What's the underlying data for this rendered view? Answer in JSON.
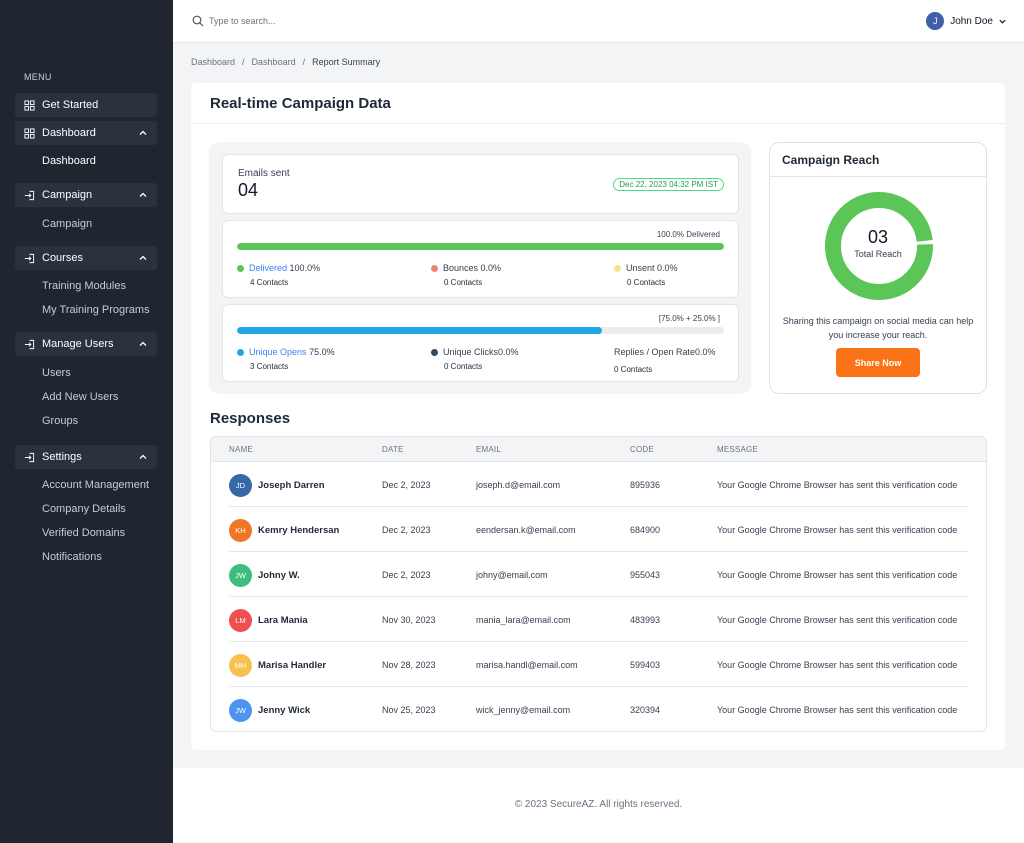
{
  "sidebar": {
    "menu_label": "MENU",
    "get_started": "Get Started",
    "dashboard": "Dashboard",
    "dashboard_sub": "Dashboard",
    "campaign": "Campaign",
    "campaign_sub": "Campaign",
    "courses": "Courses",
    "courses_sub": [
      "Training Modules",
      "My Training Programs"
    ],
    "manage_users": "Manage Users",
    "manage_users_sub": [
      "Users",
      "Add New Users",
      "Groups"
    ],
    "settings": "Settings",
    "settings_sub": [
      "Account Management",
      "Company Details",
      "Verified Domains",
      "Notifications"
    ]
  },
  "header": {
    "search_placeholder": "Type to search...",
    "user_initial": "J",
    "user_name": "John Doe"
  },
  "breadcrumb": [
    "Dashboard",
    "/",
    "Dashboard",
    "/",
    "Report Summary"
  ],
  "main": {
    "title": "Real-time Campaign Data",
    "emails_sent_label": "Emails sent",
    "emails_sent_value": "04",
    "emails_sent_date": "Dec 22, 2023 04:32 PM IST",
    "delivery": {
      "caption": "100.0% Delivered",
      "progress": 1.0,
      "color": "#5cc558",
      "delivered_label": "Delivered",
      "delivered_value": "100.0%",
      "delivered_contacts": "4 Contacts",
      "bounces": "Bounces 0.0%",
      "bounces_contacts": "0 Contacts",
      "unsent": "Unsent 0.0%",
      "unsent_contacts": "0 Contacts"
    },
    "engagement": {
      "caption": "[75.0% + 25.0% ]",
      "progress": 0.75,
      "color": "#21a7e8",
      "opens_label": "Unique Opens",
      "opens_value": "75.0%",
      "opens_contacts": "3 Contacts",
      "clicks": "Unique Clicks0.0%",
      "clicks_contacts": "0 Contacts",
      "replies": "Replies / Open Rate0.0%",
      "replies_contacts": "0 Contacts"
    },
    "reach": {
      "title": "Campaign Reach",
      "value": "03",
      "label": "Total Reach",
      "text": "Sharing this campaign on social media can help you increase your reach.",
      "button": "Share Now",
      "donut_color": "#5cc558"
    },
    "responses_title": "Responses",
    "table_headers": [
      "NAME",
      "DATE",
      "EMAIL",
      "CODE",
      "MESSAGE"
    ],
    "rows": [
      {
        "initials": "JD",
        "color": "#3667a8",
        "name": "Joseph Darren",
        "date": "Dec 2, 2023",
        "email": "joseph.d@email.com",
        "code": "895936",
        "message": "Your Google Chrome Browser has sent this verification code"
      },
      {
        "initials": "KH",
        "color": "#f07524",
        "name": "Kemry Hendersan",
        "date": "Dec 2, 2023",
        "email": "eendersan.k@email.com",
        "code": "684900",
        "message": "Your Google Chrome Browser has sent this verification code"
      },
      {
        "initials": "JW",
        "color": "#3dbf7b",
        "name": "Johny W.",
        "date": "Dec 2, 2023",
        "email": "johny@email.com",
        "code": "955043",
        "message": "Your Google Chrome Browser has sent this verification code"
      },
      {
        "initials": "LM",
        "color": "#ee5050",
        "name": "Lara Mania",
        "date": "Nov 30, 2023",
        "email": "mania_lara@email.com",
        "code": "483993",
        "message": "Your Google Chrome Browser has sent this verification code"
      },
      {
        "initials": "MH",
        "color": "#f8c14f",
        "name": "Marisa Handler",
        "date": "Nov 28, 2023",
        "email": "marisa.handl@email.com",
        "code": "599403",
        "message": "Your Google Chrome Browser has sent this verification code"
      },
      {
        "initials": "JW",
        "color": "#4e93f0",
        "name": "Jenny Wick",
        "date": "Nov 25, 2023",
        "email": "wick_jenny@email.com",
        "code": "320394",
        "message": "Your Google Chrome Browser has sent this verification code"
      }
    ]
  },
  "footer": {
    "text": "© 2023 SecureAZ. All rights reserved."
  }
}
